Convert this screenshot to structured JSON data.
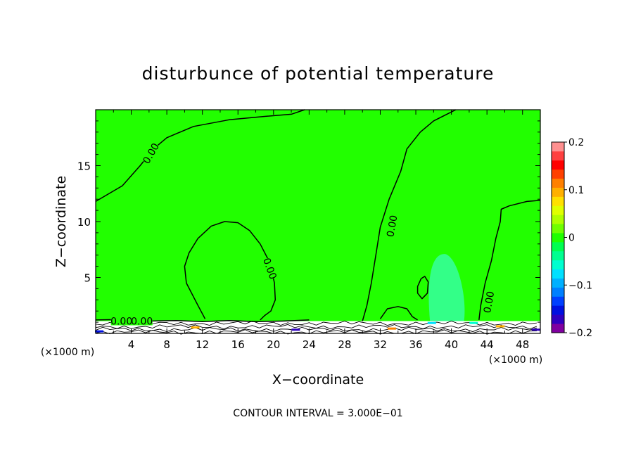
{
  "chart_data": {
    "type": "heatmap",
    "title": "disturbunce of potential temperature",
    "xlabel": "X−coordinate",
    "ylabel": "Z−coordinate",
    "x_unit_label": "(×1000 m)",
    "y_unit_label": "(×1000 m)",
    "xlim": [
      0,
      50
    ],
    "ylim": [
      0,
      20
    ],
    "x_ticks": [
      4,
      8,
      12,
      16,
      20,
      24,
      28,
      32,
      36,
      40,
      44,
      48
    ],
    "y_ticks": [
      5,
      10,
      15
    ],
    "contour_interval_text": "CONTOUR INTERVAL = 3.000E−01",
    "contour_labels": [
      "0.00",
      "0.00",
      "0.00",
      "0.00",
      "0.00",
      "0.00"
    ],
    "colorbar": {
      "min": -0.2,
      "max": 0.2,
      "tick_values": [
        0.2,
        0.1,
        0,
        -0.1,
        -0.2
      ],
      "tick_labels": [
        "0.2",
        "0.1",
        "0",
        "−0.1",
        "−0.2"
      ],
      "colors": [
        "#8000a0",
        "#3000c0",
        "#0010e0",
        "#0040ff",
        "#0080ff",
        "#00b0ff",
        "#00e0ff",
        "#00ffd0",
        "#00ff90",
        "#00ff50",
        "#20ff00",
        "#70ff00",
        "#b0ff00",
        "#e0ff00",
        "#ffe000",
        "#ffb000",
        "#ff8000",
        "#ff4000",
        "#ff0000",
        "#ff4040",
        "#ff9090"
      ]
    },
    "background_value": 0.0,
    "background_color": "#22ff00",
    "cool_anomaly": {
      "x_center": 40,
      "z_center": 3.7,
      "value": -0.04,
      "color": "#33ff88"
    }
  }
}
